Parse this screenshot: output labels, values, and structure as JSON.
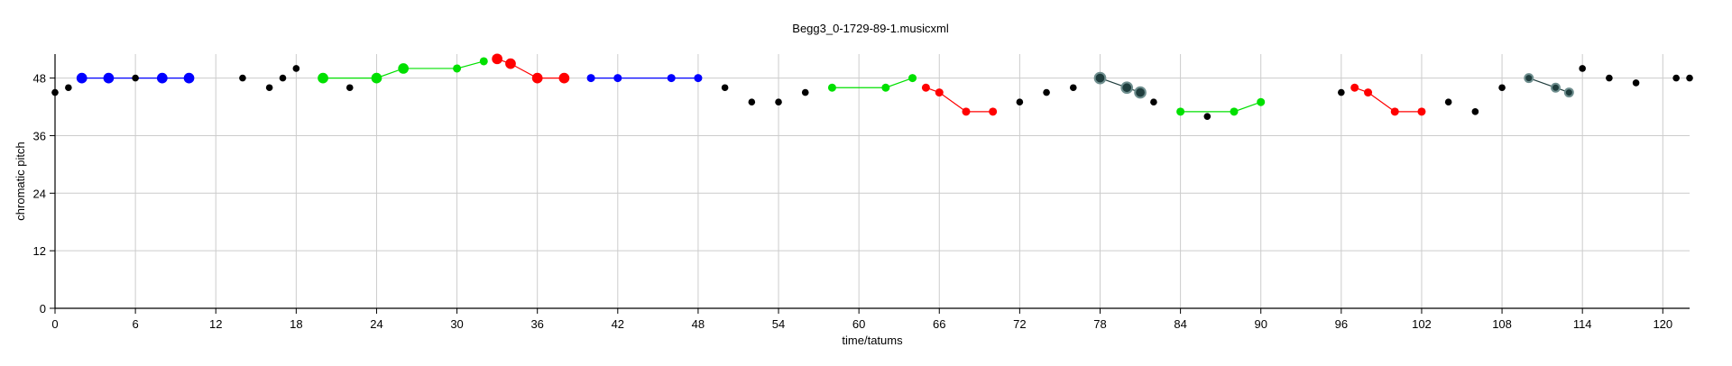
{
  "chart_data": {
    "type": "scatter",
    "title": "Begg3_0-1729-89-1.musicxml",
    "xlabel": "time/tatums",
    "ylabel": "chromatic pitch",
    "xlim": [
      0,
      122
    ],
    "ylim": [
      0,
      53
    ],
    "xticks": [
      0,
      6,
      12,
      18,
      24,
      30,
      36,
      42,
      48,
      54,
      60,
      66,
      72,
      78,
      84,
      90,
      96,
      102,
      108,
      114,
      120
    ],
    "yticks": [
      0,
      12,
      24,
      36,
      48
    ],
    "grid": true,
    "colors": {
      "blue": "#0000ff",
      "green": "#00e000",
      "red": "#ff0000",
      "dark": "#1f3d3d",
      "black": "#000000"
    },
    "notes": [
      {
        "x": 0,
        "y": 45
      },
      {
        "x": 1,
        "y": 46
      },
      {
        "x": 6,
        "y": 48
      },
      {
        "x": 14,
        "y": 48
      },
      {
        "x": 16,
        "y": 46
      },
      {
        "x": 17,
        "y": 48
      },
      {
        "x": 18,
        "y": 50
      },
      {
        "x": 22,
        "y": 46
      },
      {
        "x": 50,
        "y": 46
      },
      {
        "x": 52,
        "y": 43
      },
      {
        "x": 54,
        "y": 43
      },
      {
        "x": 56,
        "y": 45
      },
      {
        "x": 72,
        "y": 43
      },
      {
        "x": 74,
        "y": 45
      },
      {
        "x": 76,
        "y": 46
      },
      {
        "x": 82,
        "y": 43
      },
      {
        "x": 86,
        "y": 40
      },
      {
        "x": 96,
        "y": 45
      },
      {
        "x": 104,
        "y": 43
      },
      {
        "x": 106,
        "y": 41
      },
      {
        "x": 108,
        "y": 46
      },
      {
        "x": 114,
        "y": 50
      },
      {
        "x": 116,
        "y": 48
      },
      {
        "x": 118,
        "y": 47
      },
      {
        "x": 121,
        "y": 48
      },
      {
        "x": 122,
        "y": 48
      }
    ],
    "groups": [
      {
        "color": "blue",
        "points": [
          {
            "x": 2,
            "y": 48,
            "s": 1.3
          },
          {
            "x": 4,
            "y": 48,
            "s": 1.3
          },
          {
            "x": 8,
            "y": 48,
            "s": 1.3
          },
          {
            "x": 10,
            "y": 48,
            "s": 1.3
          }
        ]
      },
      {
        "color": "green",
        "points": [
          {
            "x": 20,
            "y": 48,
            "s": 1.3
          },
          {
            "x": 24,
            "y": 48,
            "s": 1.3
          },
          {
            "x": 26,
            "y": 50,
            "s": 1.3
          },
          {
            "x": 30,
            "y": 50,
            "s": 1
          },
          {
            "x": 32,
            "y": 51.5,
            "s": 1
          }
        ]
      },
      {
        "color": "red",
        "points": [
          {
            "x": 33,
            "y": 52,
            "s": 1.3
          },
          {
            "x": 34,
            "y": 51,
            "s": 1.3
          },
          {
            "x": 36,
            "y": 48,
            "s": 1.3
          },
          {
            "x": 38,
            "y": 48,
            "s": 1.3
          }
        ]
      },
      {
        "color": "blue",
        "points": [
          {
            "x": 40,
            "y": 48,
            "s": 1
          },
          {
            "x": 42,
            "y": 48,
            "s": 1
          },
          {
            "x": 46,
            "y": 48,
            "s": 1
          },
          {
            "x": 48,
            "y": 48,
            "s": 1
          }
        ]
      },
      {
        "color": "green",
        "points": [
          {
            "x": 58,
            "y": 46,
            "s": 1
          },
          {
            "x": 62,
            "y": 46,
            "s": 1
          },
          {
            "x": 64,
            "y": 48,
            "s": 1
          }
        ]
      },
      {
        "color": "red",
        "points": [
          {
            "x": 65,
            "y": 46,
            "s": 1
          },
          {
            "x": 66,
            "y": 45,
            "s": 1
          },
          {
            "x": 68,
            "y": 41,
            "s": 1
          },
          {
            "x": 70,
            "y": 41,
            "s": 1
          }
        ]
      },
      {
        "color": "dark",
        "points": [
          {
            "x": 78,
            "y": 48,
            "s": 1.3
          },
          {
            "x": 80,
            "y": 46,
            "s": 1.3
          },
          {
            "x": 81,
            "y": 45,
            "s": 1.3
          }
        ]
      },
      {
        "color": "green",
        "points": [
          {
            "x": 84,
            "y": 41,
            "s": 1
          },
          {
            "x": 88,
            "y": 41,
            "s": 1
          },
          {
            "x": 90,
            "y": 43,
            "s": 1
          }
        ]
      },
      {
        "color": "red",
        "points": [
          {
            "x": 97,
            "y": 46,
            "s": 1
          },
          {
            "x": 98,
            "y": 45,
            "s": 1
          },
          {
            "x": 100,
            "y": 41,
            "s": 1
          },
          {
            "x": 102,
            "y": 41,
            "s": 1
          }
        ]
      },
      {
        "color": "dark",
        "points": [
          {
            "x": 110,
            "y": 48,
            "s": 1
          },
          {
            "x": 112,
            "y": 46,
            "s": 1
          },
          {
            "x": 113,
            "y": 45,
            "s": 1
          }
        ]
      }
    ]
  }
}
